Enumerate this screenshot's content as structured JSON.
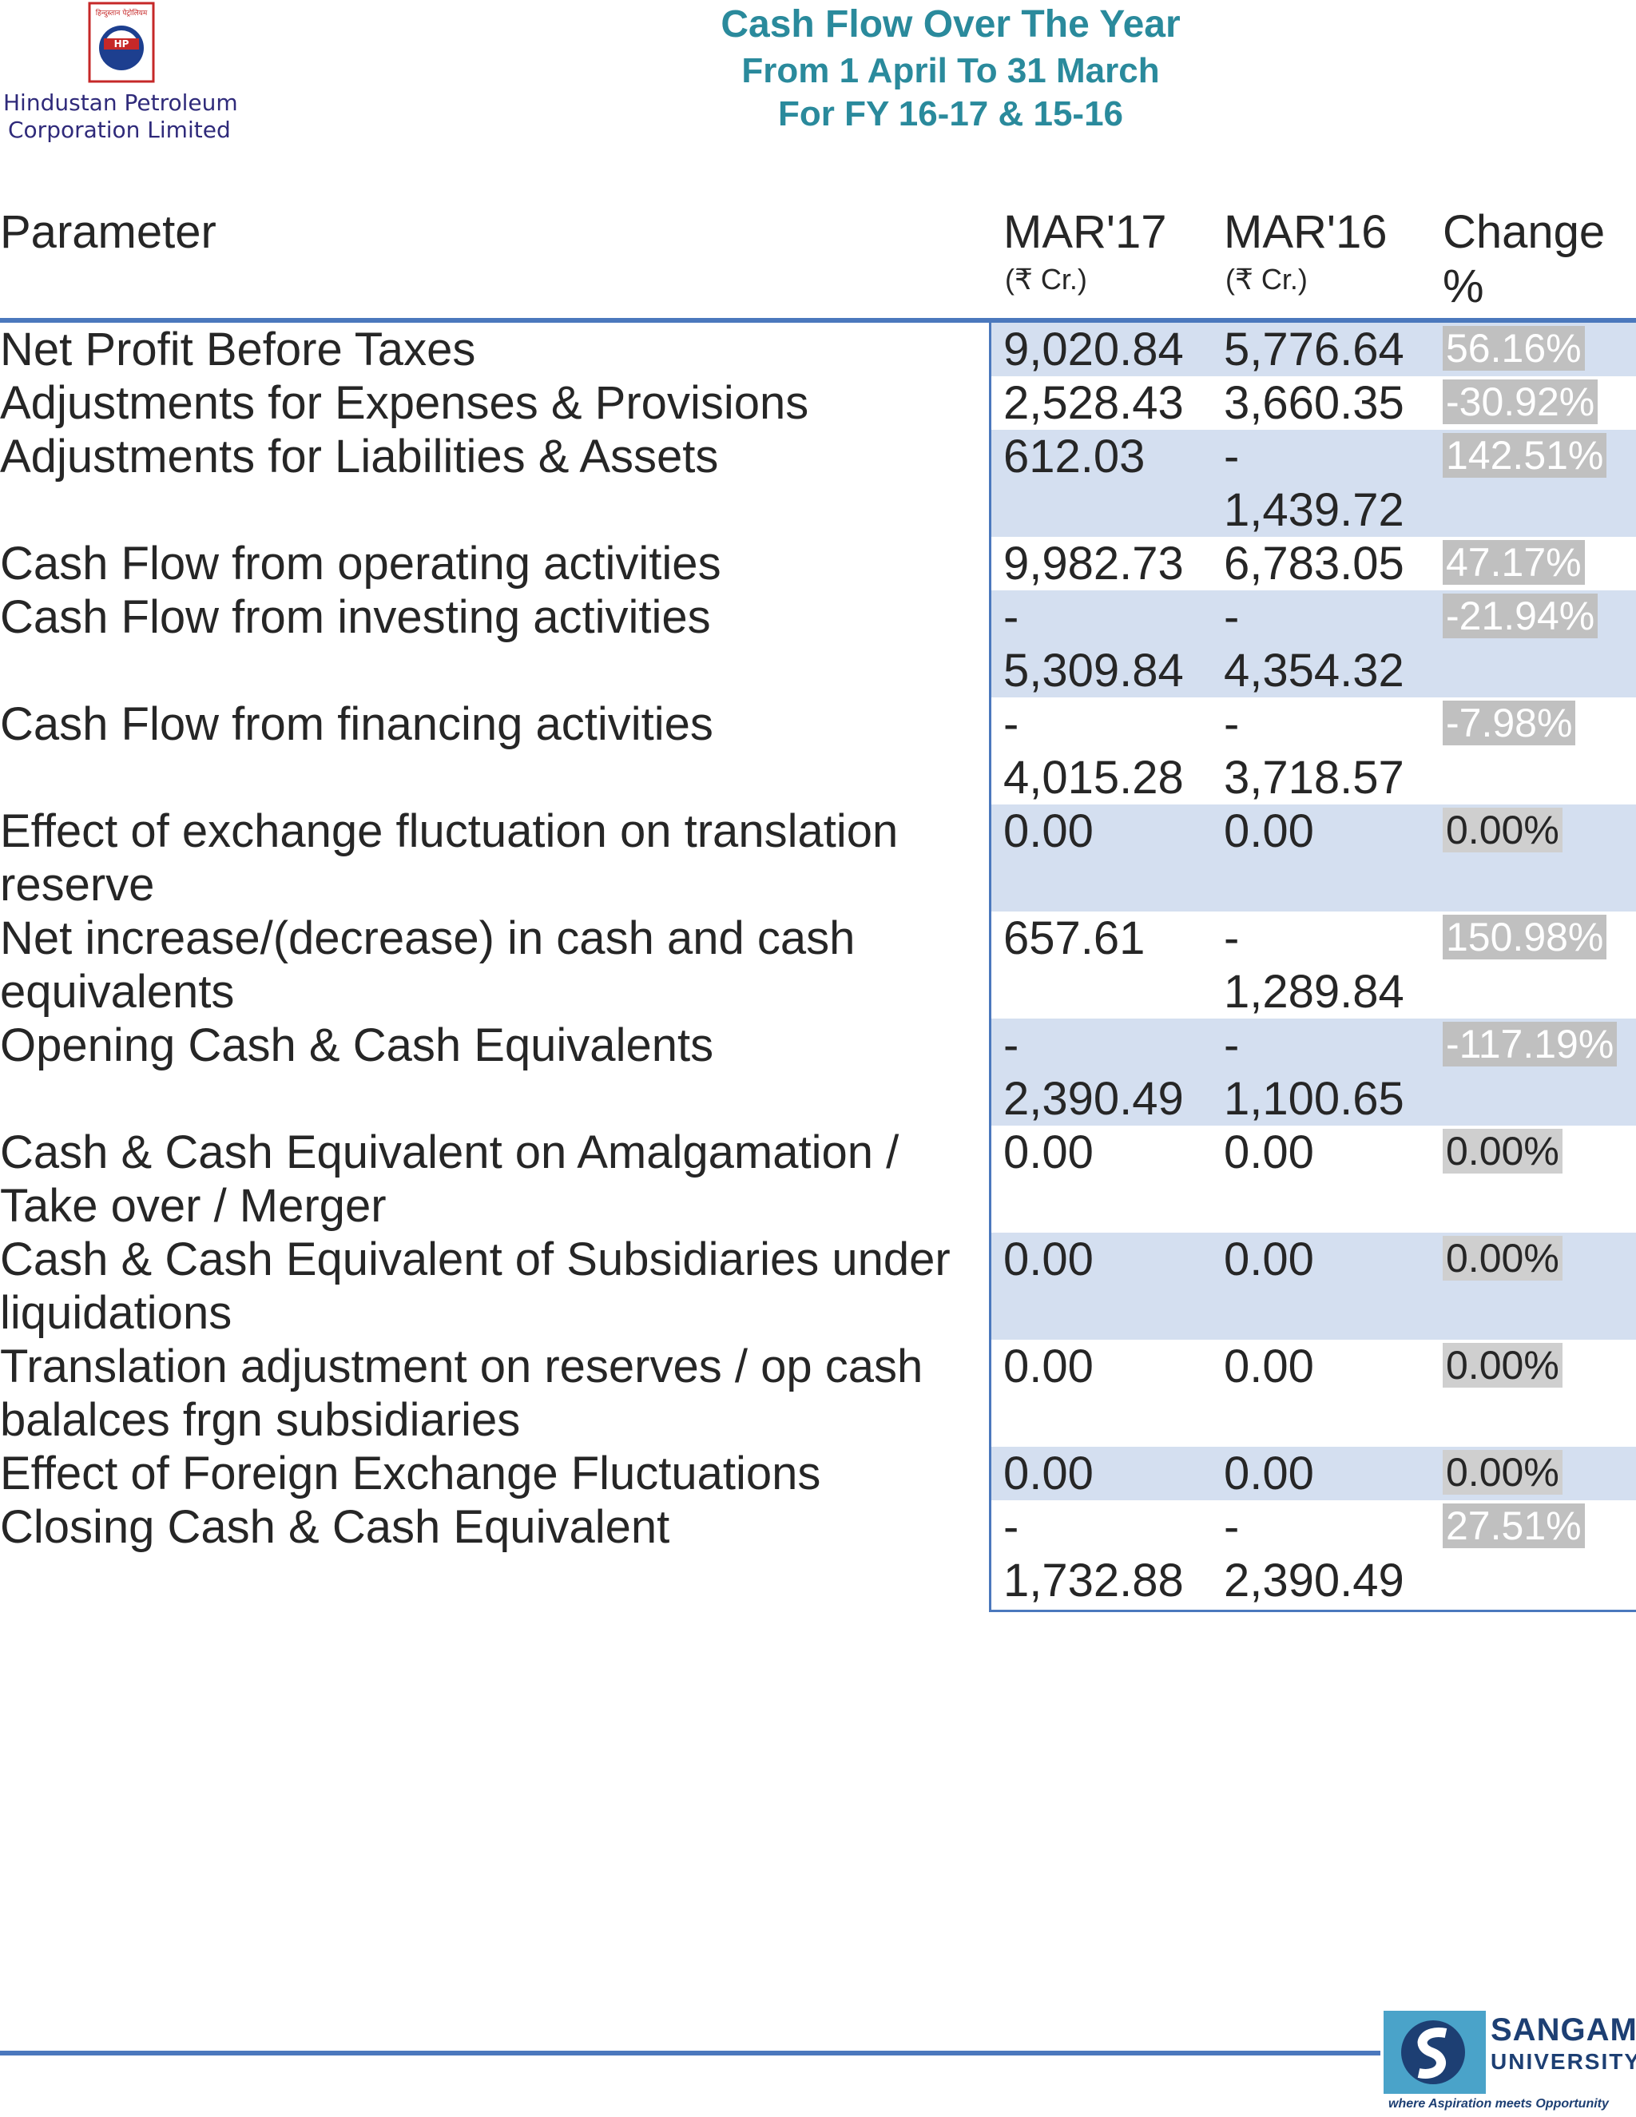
{
  "header": {
    "company_line1": "Hindustan Petroleum",
    "company_line2": "Corporation Limited",
    "emblem_top_text": "हिन्दुस्तान पेट्रोलियम",
    "emblem_letters": "HP",
    "title": "Cash Flow Over The Year",
    "subtitle1": "From 1 April To 31 March",
    "subtitle2": "For FY 16-17 & 15-16"
  },
  "table": {
    "col_param": "Parameter",
    "col_m17": "MAR'17",
    "col_m17_unit": "(₹ Cr.)",
    "col_m16": "MAR'16",
    "col_m16_unit": "(₹ Cr.)",
    "col_change": "Change",
    "col_change_unit": "%",
    "rows": [
      {
        "param": [
          "Net Profit Before Taxes"
        ],
        "m17": [
          "9,020.84"
        ],
        "m16": [
          "5,776.64"
        ],
        "change": "56.16%"
      },
      {
        "param": [
          "Adjustments for Expenses & Provisions"
        ],
        "m17": [
          "2,528.43"
        ],
        "m16": [
          "3,660.35"
        ],
        "change": "-30.92%"
      },
      {
        "param": [
          "Adjustments for Liabilities & Assets"
        ],
        "m17": [
          "612.03"
        ],
        "m16": [
          "-",
          "1,439.72"
        ],
        "change": "142.51%"
      },
      {
        "param": [
          "Cash Flow from operating activities"
        ],
        "m17": [
          "9,982.73"
        ],
        "m16": [
          "6,783.05"
        ],
        "change": "47.17%"
      },
      {
        "param": [
          "Cash Flow from investing activities"
        ],
        "m17": [
          "-",
          "5,309.84"
        ],
        "m16": [
          "-",
          "4,354.32"
        ],
        "change": "-21.94%"
      },
      {
        "param": [
          "Cash Flow from financing activities"
        ],
        "m17": [
          "-",
          "4,015.28"
        ],
        "m16": [
          "-",
          "3,718.57"
        ],
        "change": "-7.98%"
      },
      {
        "param": [
          "Effect of exchange fluctuation on translation",
          "reserve"
        ],
        "m17": [
          "0.00"
        ],
        "m16": [
          "0.00"
        ],
        "change": "0.00%"
      },
      {
        "param": [
          "Net increase/(decrease) in cash and cash",
          "equivalents"
        ],
        "m17": [
          "657.61"
        ],
        "m16": [
          "-",
          "1,289.84"
        ],
        "change": "150.98%"
      },
      {
        "param": [
          "Opening Cash & Cash Equivalents"
        ],
        "m17": [
          "-",
          "2,390.49"
        ],
        "m16": [
          "-",
          "1,100.65"
        ],
        "change": "-117.19%"
      },
      {
        "param": [
          "Cash & Cash Equivalent on Amalgamation /",
          "Take over / Merger"
        ],
        "m17": [
          "0.00"
        ],
        "m16": [
          "0.00"
        ],
        "change": "0.00%"
      },
      {
        "param": [
          "Cash & Cash Equivalent of Subsidiaries under",
          "liquidations"
        ],
        "m17": [
          "0.00"
        ],
        "m16": [
          "0.00"
        ],
        "change": "0.00%"
      },
      {
        "param": [
          "Translation adjustment on reserves / op cash",
          "balalces frgn subsidiaries"
        ],
        "m17": [
          "0.00"
        ],
        "m16": [
          "0.00"
        ],
        "change": "0.00%"
      },
      {
        "param": [
          "Effect of Foreign Exchange Fluctuations"
        ],
        "m17": [
          "0.00"
        ],
        "m16": [
          "0.00"
        ],
        "change": "0.00%"
      },
      {
        "param": [
          "Closing Cash & Cash Equivalent"
        ],
        "m17": [
          "-",
          "1,732.88"
        ],
        "m16": [
          "-",
          "2,390.49"
        ],
        "change": "27.51%"
      }
    ]
  },
  "footer": {
    "university_name": "SANGAM",
    "university_word": "UNIVERSITY",
    "tagline": "where Aspiration meets Opportunity"
  },
  "colors": {
    "title": "#2a8a9c",
    "rule": "#4b78bd",
    "shade": "#d4dff0",
    "company": "#2f2a7a"
  }
}
